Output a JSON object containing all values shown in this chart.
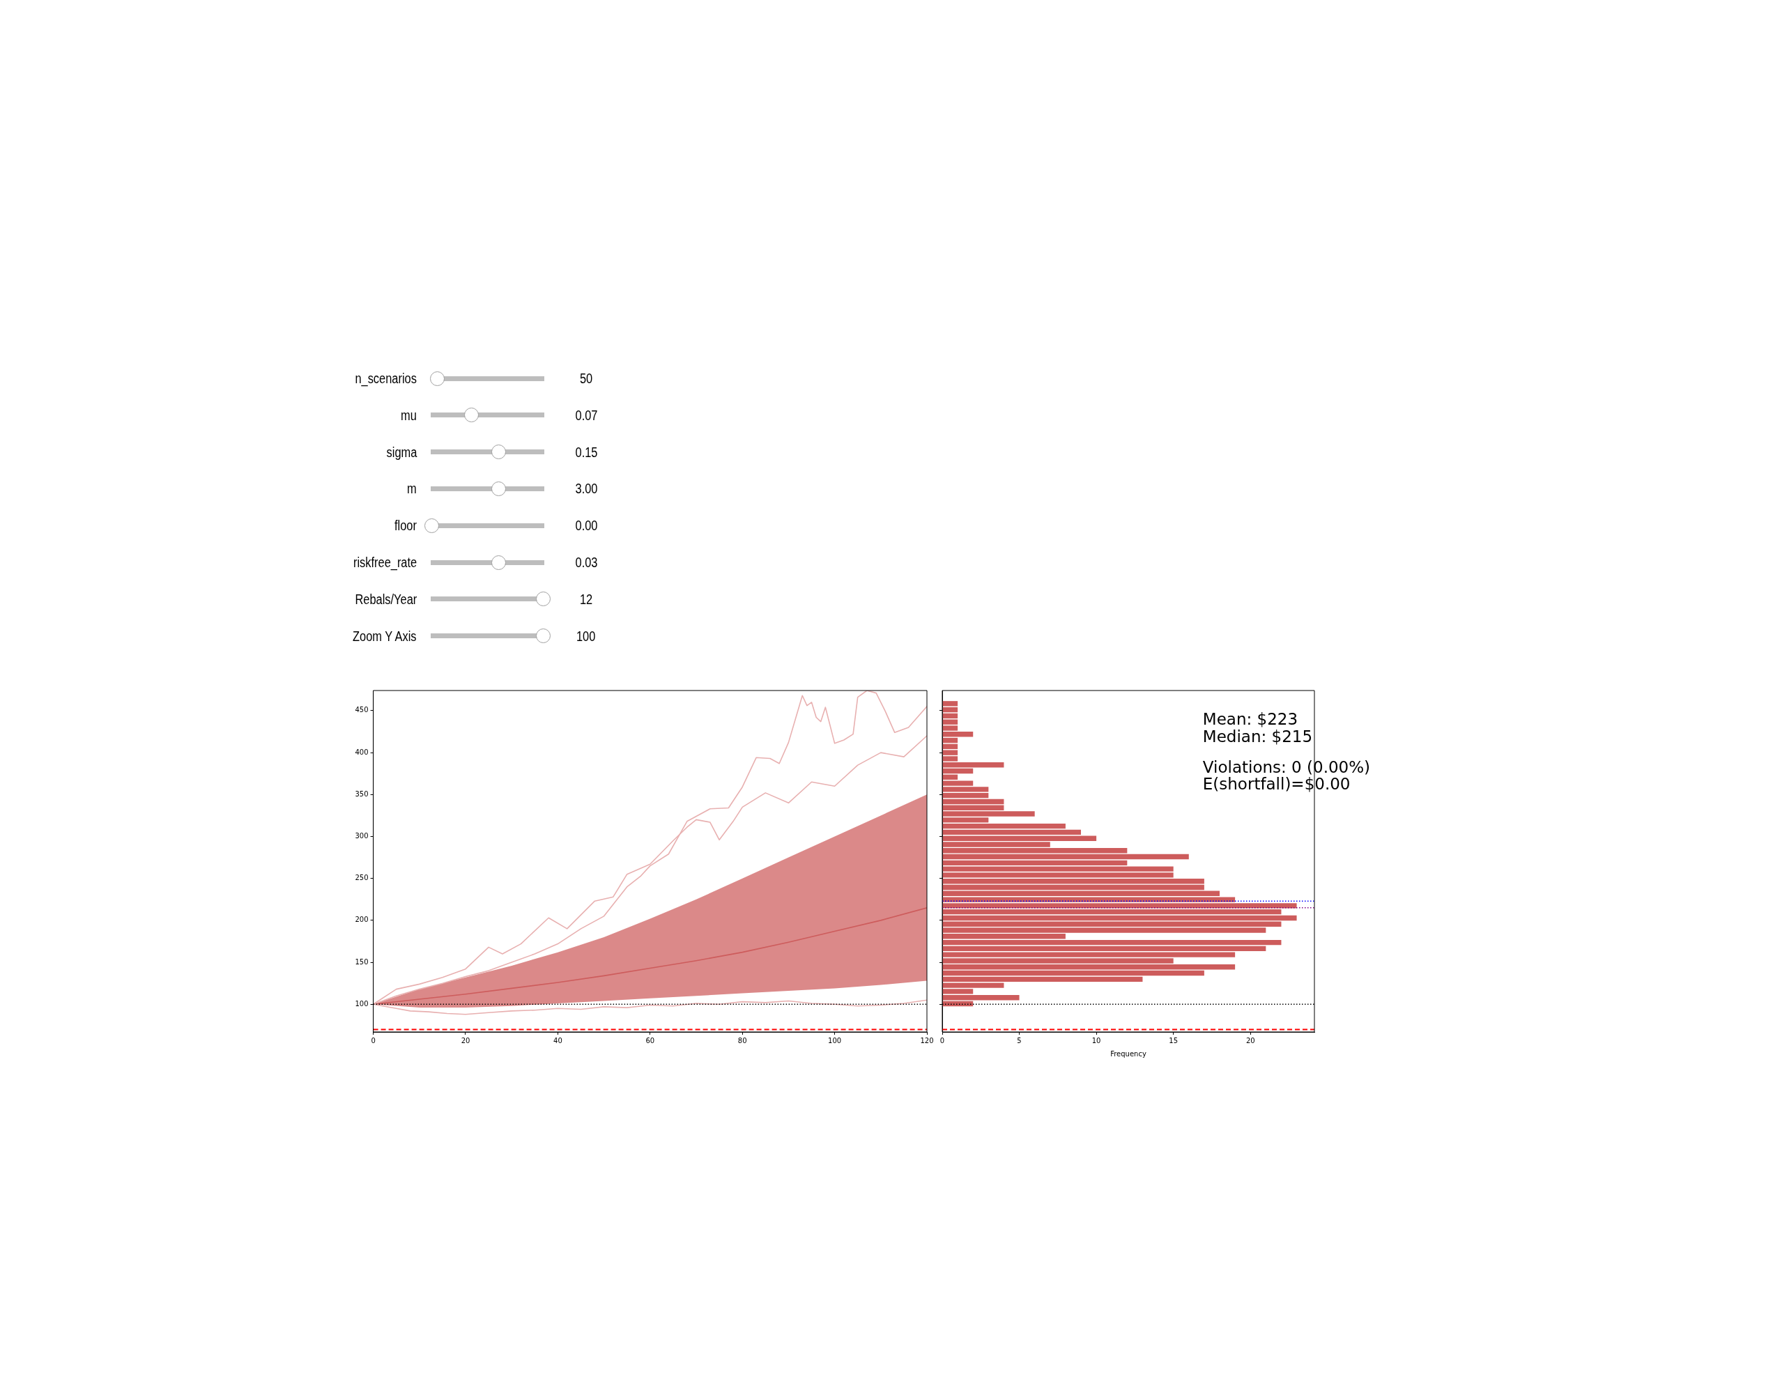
{
  "chart_data": [
    {
      "type": "other",
      "categories": [
        "n_scenarios",
        "mu",
        "sigma",
        "m",
        "floor",
        "riskfree_rate",
        "Rebals/Year",
        "Zoom Y Axis"
      ],
      "value_labels": [
        "50",
        "0.07",
        "0.15",
        "3.00",
        "0.00",
        "0.03",
        "12",
        "100"
      ]
    },
    {
      "type": "line",
      "x": [
        0,
        10,
        20,
        30,
        40,
        50,
        60,
        70,
        80,
        90,
        100,
        110,
        120
      ],
      "series": [
        {
          "color": "#cd5c5c",
          "values": [
            100,
            106,
            112,
            119,
            126,
            134,
            143,
            152,
            162,
            174,
            187,
            200,
            215
          ],
          "lower": [
            100,
            96,
            96,
            98,
            101,
            104,
            107,
            110,
            113,
            116,
            119,
            123,
            128
          ],
          "upper": [
            100,
            118,
            132,
            146,
            162,
            180,
            202,
            225,
            250,
            275,
            300,
            325,
            350
          ]
        },
        {
          "color": "#e8b0b0",
          "x": [
            0,
            5,
            10,
            15,
            20,
            25,
            30,
            35,
            40,
            45,
            50,
            55,
            58,
            60,
            64,
            68,
            73,
            77,
            80,
            83,
            86,
            88,
            90,
            93,
            94,
            95,
            96,
            97,
            98,
            100,
            102,
            104,
            105,
            107,
            109,
            111,
            113,
            116,
            120
          ],
          "values": [
            100,
            110,
            118,
            125,
            133,
            140,
            150,
            160,
            172,
            190,
            205,
            240,
            253,
            265,
            279,
            318,
            333,
            334,
            359,
            394,
            393,
            387,
            412,
            468,
            456,
            460,
            442,
            437,
            454,
            411,
            415,
            422,
            466,
            474,
            471,
            449,
            424,
            430,
            455
          ]
        },
        {
          "color": "#e8b0b0",
          "x": [
            0,
            5,
            10,
            15,
            20,
            25,
            28,
            32,
            38,
            42,
            48,
            52,
            55,
            60,
            65,
            68,
            70,
            73,
            75,
            78,
            80,
            85,
            90,
            95,
            100,
            105,
            110,
            115,
            120
          ],
          "values": [
            100,
            118,
            124,
            132,
            142,
            168,
            160,
            172,
            203,
            190,
            223,
            228,
            255,
            267,
            295,
            311,
            320,
            317,
            296,
            318,
            335,
            352,
            340,
            365,
            360,
            385,
            400,
            395,
            420
          ]
        },
        {
          "color": "#e8b0b0",
          "x": [
            0,
            5,
            8,
            12,
            16,
            20,
            25,
            30,
            35,
            40,
            45,
            50,
            55,
            60,
            65,
            70,
            75,
            80,
            85,
            90,
            95,
            100,
            105,
            110,
            115,
            120
          ],
          "values": [
            100,
            95,
            92,
            91,
            89,
            88,
            90,
            92,
            93,
            95,
            94,
            97,
            96,
            99,
            98,
            101,
            100,
            103,
            102,
            104,
            101,
            100,
            98,
            99,
            101,
            105
          ]
        }
      ],
      "xlim": [
        0,
        120
      ],
      "xticks": [
        0,
        20,
        40,
        60,
        80,
        100,
        120
      ],
      "ylim": [
        67,
        474
      ],
      "yticks": [
        100,
        150,
        200,
        250,
        300,
        350,
        400,
        450
      ],
      "ref_lines": [
        {
          "axis": "y",
          "value": 100,
          "color": "#000000",
          "line_style": "dotted"
        },
        {
          "axis": "y",
          "value": 70,
          "color": "#ff0000",
          "line_style": "dashed"
        }
      ]
    },
    {
      "type": "histogram",
      "orientation": "horizontal",
      "bins": [
        97,
        104.3,
        111.6,
        118.9,
        126.2,
        133.5,
        140.8,
        148.1,
        155.4,
        162.7,
        170,
        177.3,
        184.6,
        191.9,
        199.2,
        206.5,
        213.8,
        221.1,
        228.4,
        235.7,
        243,
        250.3,
        257.6,
        264.9,
        272.2,
        279.5,
        286.8,
        294.1,
        301.4,
        308.7,
        316,
        323.3,
        330.6,
        337.9,
        345.2,
        352.5,
        359.8,
        367.1,
        374.4,
        381.7,
        389,
        396.3,
        403.6,
        410.9,
        418.2,
        425.5,
        432.8,
        440.1,
        447.4,
        454.7,
        462
      ],
      "values": [
        2,
        5,
        2,
        4,
        13,
        17,
        19,
        15,
        19,
        21,
        22,
        8,
        21,
        22,
        23,
        22,
        23,
        19,
        18,
        17,
        17,
        15,
        15,
        12,
        16,
        12,
        7,
        10,
        9,
        8,
        3,
        6,
        4,
        4,
        3,
        3,
        2,
        1,
        2,
        4,
        1,
        1,
        1,
        1,
        2,
        1,
        1,
        1,
        1,
        1
      ],
      "color": "#cd5c5c",
      "xlim": [
        0,
        24.15
      ],
      "xticks": [
        0,
        5,
        10,
        15,
        20
      ],
      "ylim": [
        67,
        474
      ],
      "yticks": [
        100,
        150,
        200,
        250,
        300,
        350,
        400,
        450
      ],
      "tick_labels": "x",
      "xlabel": "Frequency",
      "ref_lines": [
        {
          "axis": "y",
          "value": 100,
          "color": "#000000",
          "line_style": "dotted"
        },
        {
          "axis": "y",
          "value": 223,
          "color": "#0000ff",
          "line_style": "dotted"
        },
        {
          "axis": "y",
          "value": 215,
          "color": "#800080",
          "line_style": "dotted"
        },
        {
          "axis": "y",
          "value": 70,
          "color": "#ff0000",
          "line_style": "dashed"
        }
      ],
      "annotations": [
        "Mean: $223",
        "Median: $215",
        "Violations: 0 (0.00%)\nE(shortfall)=$0.00"
      ]
    }
  ]
}
